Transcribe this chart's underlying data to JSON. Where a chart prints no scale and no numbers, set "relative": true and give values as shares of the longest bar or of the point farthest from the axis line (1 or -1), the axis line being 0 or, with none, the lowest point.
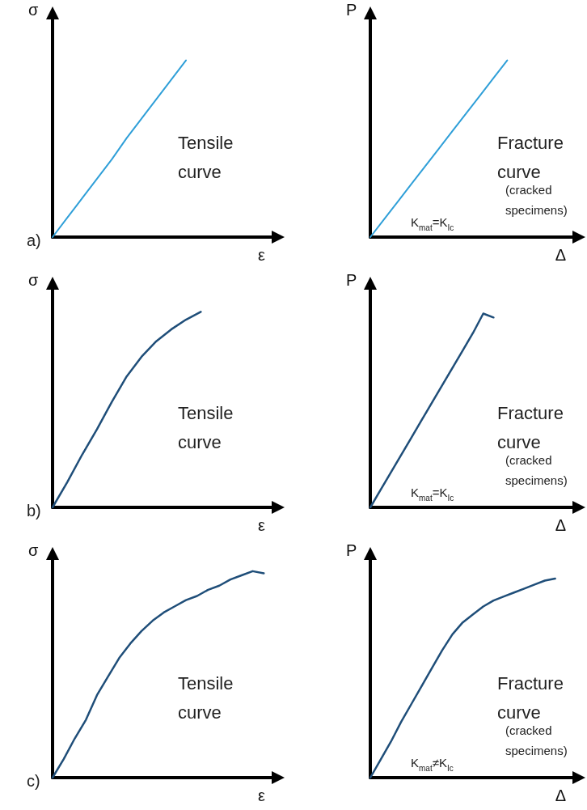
{
  "chart_data": [
    {
      "type": "line",
      "relative": true,
      "xlabel": "ε",
      "ylabel": "σ",
      "annotations": [
        "a)",
        "Tensile curve"
      ],
      "categories": [
        null,
        null,
        null,
        null,
        null,
        null,
        null,
        null,
        null,
        null,
        null,
        null,
        null,
        null,
        null,
        null
      ],
      "series": [
        {
          "color": "#2f9fd8",
          "values": [
            0,
            0.11,
            0.22,
            0.33,
            0.44,
            0.56,
            0.67,
            0.78,
            0.89,
            1,
            null,
            null,
            null,
            null,
            null,
            null
          ]
        }
      ]
    },
    {
      "type": "line",
      "relative": true,
      "xlabel": "Δ",
      "ylabel": "P",
      "annotations": [
        "Fracture curve",
        "(cracked specimens)",
        "K$_{mat}$=K$_{Ic}$"
      ],
      "categories": [
        null,
        null,
        null,
        null,
        null,
        null,
        null,
        null,
        null,
        null,
        null,
        null,
        null,
        null,
        null,
        null
      ],
      "series": [
        {
          "color": "#2f9fd8",
          "values": [
            0,
            0.1,
            0.2,
            0.3,
            0.4,
            0.5,
            0.6,
            0.7,
            0.8,
            0.9,
            1,
            null,
            null,
            null,
            null,
            null
          ]
        }
      ]
    },
    {
      "type": "line",
      "relative": true,
      "xlabel": "ε",
      "ylabel": "σ",
      "annotations": [
        "b)",
        "Tensile curve"
      ],
      "categories": [
        null,
        null,
        null,
        null,
        null,
        null,
        null,
        null,
        null,
        null,
        null,
        null,
        null,
        null,
        null,
        null
      ],
      "series": [
        {
          "color": "#1f4e79",
          "values": [
            0,
            0.13,
            0.27,
            0.4,
            0.54,
            0.67,
            0.77,
            0.85,
            0.91,
            0.96,
            1,
            null,
            null,
            null,
            null,
            null
          ]
        }
      ]
    },
    {
      "type": "line",
      "relative": true,
      "xlabel": "Δ",
      "ylabel": "P",
      "annotations": [
        "Fracture curve",
        "(cracked specimens)",
        "K$_{mat}$=K$_{Ic}$"
      ],
      "categories": [
        null,
        null,
        null,
        null,
        null,
        null,
        null,
        null,
        null,
        null,
        null,
        null,
        null,
        null,
        null,
        null,
        null,
        null,
        null,
        null,
        null
      ],
      "series": [
        {
          "color": "#1f4e79",
          "values": [
            0,
            0.09,
            0.18,
            0.27,
            0.36,
            0.45,
            0.54,
            0.63,
            0.72,
            0.81,
            0.9,
            1,
            0.98,
            null,
            null,
            null,
            null,
            null,
            null,
            null,
            null
          ]
        }
      ]
    },
    {
      "type": "line",
      "relative": true,
      "xlabel": "ε",
      "ylabel": "σ",
      "annotations": [
        "c)",
        "Tensile curve"
      ],
      "categories": [
        null,
        null,
        null,
        null,
        null,
        null,
        null,
        null,
        null,
        null,
        null,
        null,
        null,
        null,
        null,
        null,
        null,
        null,
        null,
        null,
        null
      ],
      "series": [
        {
          "color": "#1f4e79",
          "values": [
            0,
            0.09,
            0.19,
            0.28,
            0.4,
            0.49,
            0.58,
            0.65,
            0.71,
            0.76,
            0.8,
            0.83,
            0.86,
            0.88,
            0.91,
            0.93,
            0.96,
            0.98,
            1,
            0.99,
            null
          ]
        }
      ]
    },
    {
      "type": "line",
      "relative": true,
      "xlabel": "Δ",
      "ylabel": "P",
      "annotations": [
        "Fracture curve",
        "(cracked specimens)",
        "K$_{mat}$≠K$_{Ic}$"
      ],
      "categories": [
        null,
        null,
        null,
        null,
        null,
        null,
        null,
        null,
        null,
        null,
        null,
        null,
        null,
        null,
        null,
        null,
        null,
        null,
        null,
        null,
        null
      ],
      "series": [
        {
          "color": "#1f4e79",
          "values": [
            0,
            0.09,
            0.18,
            0.28,
            0.37,
            0.46,
            0.55,
            0.64,
            0.72,
            0.78,
            0.82,
            0.86,
            0.89,
            0.91,
            0.93,
            0.95,
            0.97,
            0.99,
            1,
            null,
            null
          ]
        }
      ]
    }
  ]
}
